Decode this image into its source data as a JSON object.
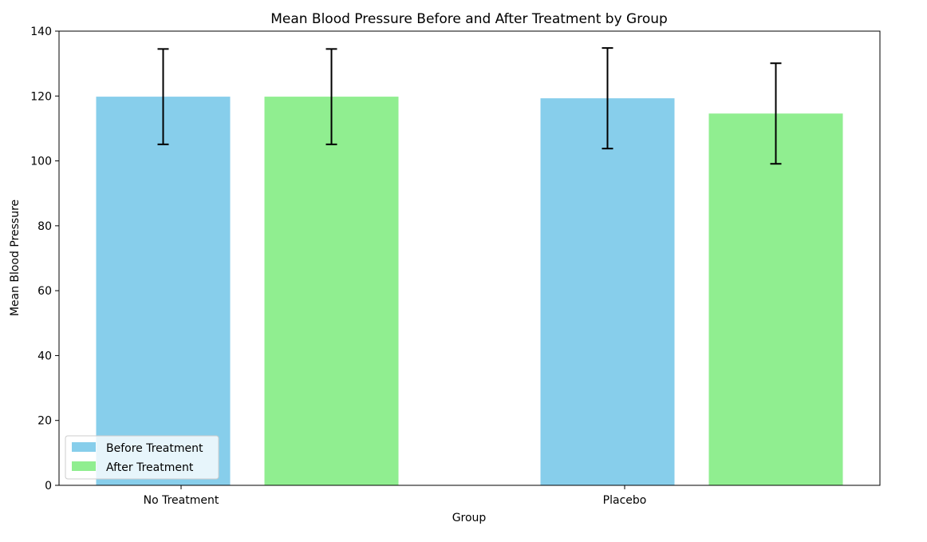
{
  "chart_data": {
    "type": "bar",
    "title": "Mean Blood Pressure Before and After Treatment by Group",
    "xlabel": "Group",
    "ylabel": "Mean Blood Pressure",
    "categories": [
      "No Treatment",
      "Placebo"
    ],
    "series": [
      {
        "name": "Before Treatment",
        "color": "#87CEEB",
        "values": [
          119.8,
          119.3
        ],
        "errors": [
          14.7,
          15.5
        ]
      },
      {
        "name": "After Treatment",
        "color": "#90EE90",
        "values": [
          119.8,
          114.6
        ],
        "errors": [
          14.7,
          15.5
        ]
      }
    ],
    "ylim": [
      0,
      140
    ],
    "yticks": [
      0,
      20,
      40,
      60,
      80,
      100,
      120,
      140
    ],
    "grid": false,
    "legend_position": "bottom-left"
  }
}
